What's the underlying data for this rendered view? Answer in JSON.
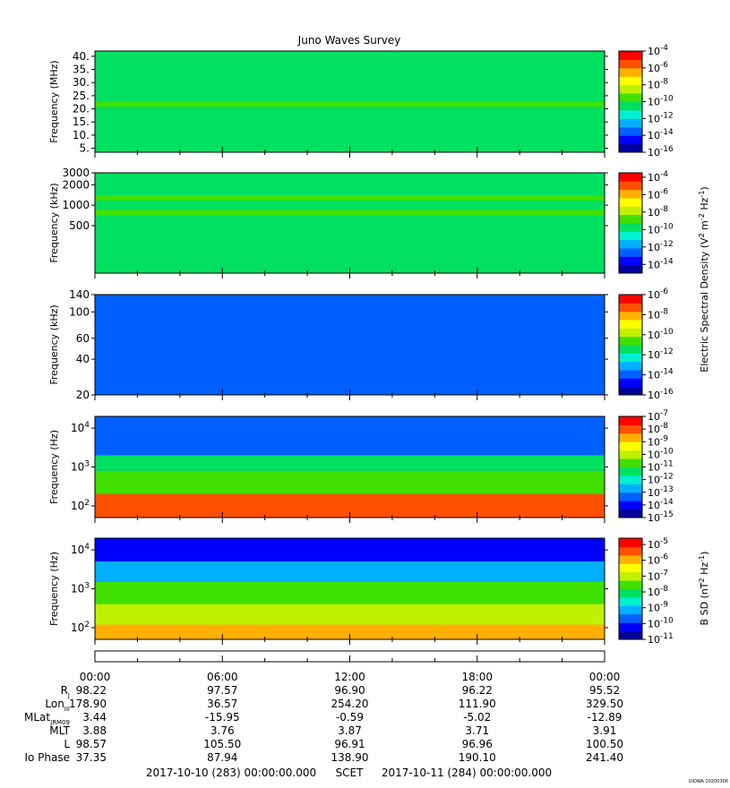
{
  "title": "Juno Waves Survey",
  "footer_stamp": "UIOWA 20200306",
  "colors": {
    "scale": [
      "#0000a0",
      "#0000ff",
      "#0060ff",
      "#00b0ff",
      "#00f0d0",
      "#00e060",
      "#40e000",
      "#c0f000",
      "#ffff00",
      "#ffb000",
      "#ff5000",
      "#ff0000"
    ]
  },
  "panels": [
    {
      "id": "p1",
      "ylabel": "Frequency (MHz)",
      "yscale": "linear",
      "yrange": [
        3.5,
        42
      ],
      "ytick_values": [
        5,
        10,
        15,
        20,
        25,
        30,
        35,
        40
      ],
      "ytick_labels": [
        "5.",
        "10.",
        "15.",
        "20.",
        "25.",
        "30.",
        "35.",
        "40."
      ],
      "background_level": 0.42,
      "bands": [
        {
          "from": 20.8,
          "to": 22.6,
          "level": 0.5
        }
      ],
      "colorbar": {
        "range": [
          -16,
          -4
        ],
        "tick_exponents": [
          -16,
          -14,
          -12,
          -10,
          -8,
          -6,
          -4
        ]
      }
    },
    {
      "id": "p2",
      "ylabel": "Frequency (kHz)",
      "yscale": "log",
      "yrange": [
        100,
        3000
      ],
      "ytick_values": [
        500,
        1000,
        2000,
        3000
      ],
      "ytick_labels": [
        "500",
        "1000",
        "2000",
        "3000"
      ],
      "background_level": 0.42,
      "bands": [
        {
          "from": 1180,
          "to": 1400,
          "level": 0.5
        },
        {
          "from": 700,
          "to": 860,
          "level": 0.52
        }
      ],
      "colorbar": {
        "range": [
          -15,
          -3.5
        ],
        "tick_exponents": [
          -14,
          -12,
          -10,
          -8,
          -6,
          -4
        ]
      }
    },
    {
      "id": "p3",
      "ylabel": "Frequency (kHz)",
      "yscale": "log",
      "yrange": [
        20,
        140
      ],
      "ytick_values": [
        20,
        40,
        60,
        100,
        140
      ],
      "ytick_labels": [
        "20",
        "40",
        "60",
        "100",
        "140"
      ],
      "background_level": 0.2,
      "bands": [],
      "colorbar": {
        "range": [
          -16,
          -6
        ],
        "tick_exponents": [
          -16,
          -14,
          -12,
          -10,
          -8,
          -6
        ]
      }
    },
    {
      "id": "p4",
      "ylabel": "Frequency (Hz)",
      "yscale": "log",
      "yrange": [
        50,
        20000
      ],
      "ytick_values": [
        100,
        1000,
        10000
      ],
      "ytick_labels": [
        "10^2",
        "10^3",
        "10^4"
      ],
      "background_level": 0.2,
      "bands": [
        {
          "from": 2000,
          "to": 20000,
          "level": 0.22
        },
        {
          "from": 800,
          "to": 2000,
          "level": 0.45
        },
        {
          "from": 200,
          "to": 800,
          "level": 0.55
        },
        {
          "from": 50,
          "to": 200,
          "level": 0.9
        }
      ],
      "colorbar": {
        "range": [
          -15,
          -7
        ],
        "tick_exponents": [
          -15,
          -14,
          -13,
          -12,
          -11,
          -10,
          -9,
          -8,
          -7
        ]
      }
    },
    {
      "id": "p5",
      "ylabel": "Frequency (Hz)",
      "yscale": "log",
      "yrange": [
        50,
        20000
      ],
      "ytick_values": [
        100,
        1000,
        10000
      ],
      "ytick_labels": [
        "10^2",
        "10^3",
        "10^4"
      ],
      "background_level": 0.5,
      "bands": [
        {
          "from": 5000,
          "to": 20000,
          "level": 0.1
        },
        {
          "from": 1500,
          "to": 5000,
          "level": 0.3
        },
        {
          "from": 400,
          "to": 1500,
          "level": 0.5
        },
        {
          "from": 120,
          "to": 400,
          "level": 0.62
        },
        {
          "from": 50,
          "to": 120,
          "level": 0.75
        }
      ],
      "colorbar": {
        "range": [
          -11,
          -4.6
        ],
        "tick_exponents": [
          -11,
          -10,
          -9,
          -8,
          -7,
          -6,
          -5
        ]
      }
    }
  ],
  "side_labels": {
    "electric_pre": "Electric Spectral Density (V",
    "electric_mid": " m",
    "electric_mid2": " Hz",
    "electric_post": ")",
    "bsd_pre": "B SD (nT",
    "bsd_mid": " Hz",
    "bsd_post": ")",
    "sup_2": "2",
    "sup_m2": "-2",
    "sup_m1": "-1"
  },
  "ephemeris": {
    "time_labels": [
      "00:00",
      "06:00",
      "12:00",
      "18:00",
      "00:00"
    ],
    "rows": [
      {
        "label": "R",
        "sub": "J",
        "values": [
          "98.22",
          "97.57",
          "96.90",
          "96.22",
          "95.52"
        ]
      },
      {
        "label": "Lon",
        "sub": "III",
        "values": [
          "178.90",
          "36.57",
          "254.20",
          "111.90",
          "329.50"
        ]
      },
      {
        "label": "MLat",
        "sub": "JRM09",
        "values": [
          "3.44",
          "-15.95",
          "-0.59",
          "-5.02",
          "-12.89"
        ]
      },
      {
        "label": "MLT",
        "sub": "",
        "values": [
          "3.88",
          "3.76",
          "3.87",
          "3.71",
          "3.91"
        ]
      },
      {
        "label": "L",
        "sub": "",
        "values": [
          "98.57",
          "105.50",
          "96.91",
          "96.96",
          "100.50"
        ]
      },
      {
        "label": "Io Phase",
        "sub": "",
        "values": [
          "37.35",
          "87.94",
          "138.90",
          "190.10",
          "241.40"
        ]
      }
    ],
    "date_start": "2017-10-10 (283) 00:00:00.000",
    "scet_label": "SCET",
    "date_end": "2017-10-11 (284) 00:00:00.000"
  }
}
